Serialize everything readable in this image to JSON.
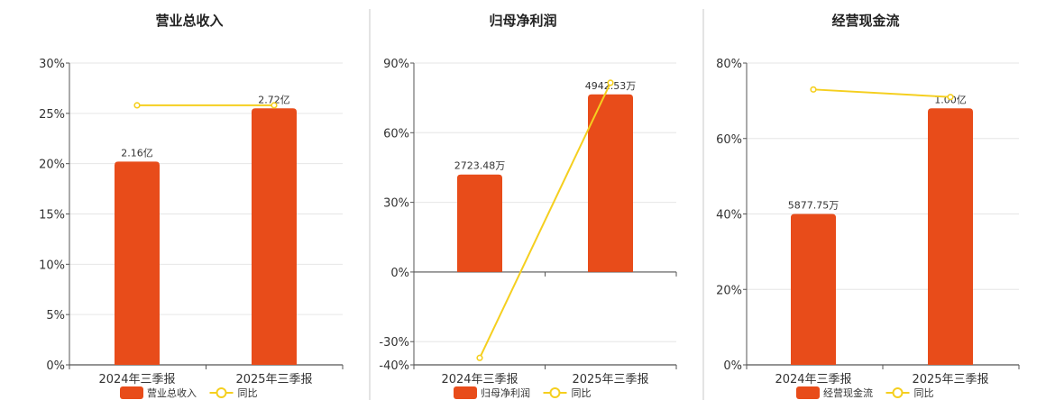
{
  "colors": {
    "bar": "#e84c1a",
    "line": "#f5cf1f",
    "grid": "#e6e6e6",
    "axis": "#555555",
    "divider": "#c8c8c8"
  },
  "chart_data": [
    {
      "type": "bar",
      "title": "营业总收入",
      "categories": [
        "2024年三季报",
        "2025年三季报"
      ],
      "series": [
        {
          "name": "营业总收入",
          "kind": "bar",
          "values": [
            20.2,
            25.5
          ],
          "labels": [
            "2.16亿",
            "2.72亿"
          ]
        },
        {
          "name": "同比",
          "kind": "line",
          "values": [
            25.8,
            25.8
          ]
        }
      ],
      "yticks": [
        "30%",
        "25%",
        "20%",
        "15%",
        "10%",
        "5%",
        "0%"
      ],
      "ylim": [
        0,
        30
      ],
      "grid": true,
      "legend": "bottom"
    },
    {
      "type": "bar",
      "title": "归母净利润",
      "categories": [
        "2024年三季报",
        "2025年三季报"
      ],
      "series": [
        {
          "name": "归母净利润",
          "kind": "bar",
          "values": [
            42,
            76.5
          ],
          "labels": [
            "2723.48万",
            "4942.53万"
          ]
        },
        {
          "name": "同比",
          "kind": "line",
          "values": [
            -37,
            81.5
          ]
        }
      ],
      "yticks": [
        "90%",
        "60%",
        "30%",
        "0%",
        "-30%",
        "-40%"
      ],
      "ylim": [
        -40,
        90
      ],
      "grid": true,
      "legend": "bottom"
    },
    {
      "type": "bar",
      "title": "经营现金流",
      "categories": [
        "2024年三季报",
        "2025年三季报"
      ],
      "series": [
        {
          "name": "经营现金流",
          "kind": "bar",
          "values": [
            40,
            68
          ],
          "labels": [
            "5877.75万",
            "1.00亿"
          ]
        },
        {
          "name": "同比",
          "kind": "line",
          "values": [
            73,
            71
          ]
        }
      ],
      "yticks": [
        "80%",
        "60%",
        "40%",
        "20%",
        "0%"
      ],
      "ylim": [
        0,
        80
      ],
      "grid": true,
      "legend": "bottom"
    }
  ]
}
